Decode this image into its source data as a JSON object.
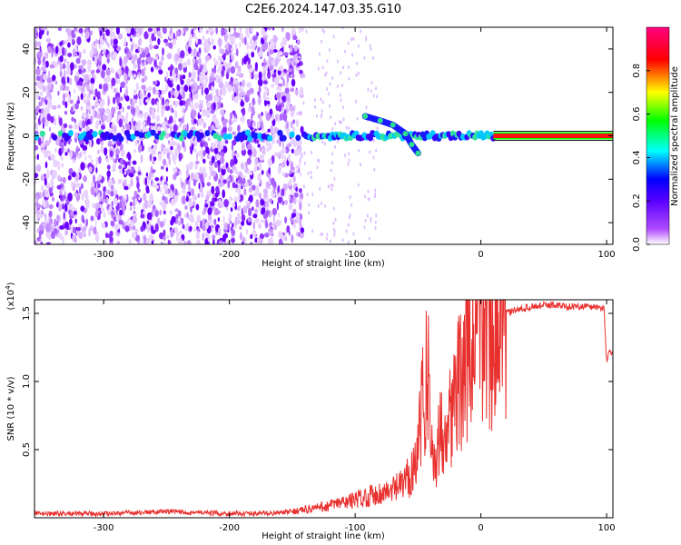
{
  "title": "C2E6.2024.147.03.35.G10",
  "chart_data": [
    {
      "type": "heatmap",
      "xlabel": "Height of straight line (km)",
      "ylabel": "Frequency (Hz)",
      "xlim": [
        -355,
        105
      ],
      "ylim": [
        -50,
        50
      ],
      "x_ticks": [
        -300,
        -200,
        -100,
        0,
        100
      ],
      "y_ticks": [
        -40,
        -20,
        0,
        20,
        40
      ],
      "colorbar": {
        "label": "Normalized spectral amplitude",
        "range": [
          0,
          1
        ],
        "ticks": [
          "0.0",
          "0.2",
          "0.4",
          "0.6",
          "0.8"
        ],
        "colormap": [
          "#ffffff",
          "#b14cff",
          "#5a00ff",
          "#0000ff",
          "#00ffff",
          "#00ff00",
          "#ffff00",
          "#ff0000",
          "#ff0080"
        ]
      },
      "features": {
        "noise_region_x": [
          -355,
          -142
        ],
        "main_line_frequency": 0,
        "strong_line_x": [
          10,
          105
        ],
        "branch": [
          {
            "x": -92,
            "y": 9
          },
          {
            "x": -80,
            "y": 7
          },
          {
            "x": -70,
            "y": 5
          },
          {
            "x": -60,
            "y": 1
          },
          {
            "x": -55,
            "y": -4
          },
          {
            "x": -50,
            "y": -8
          }
        ]
      }
    },
    {
      "type": "line",
      "xlabel": "Height of straight line (km)",
      "ylabel": "SNR (10 * v/v)",
      "y_multiplier": "(x10",
      "y_multiplier_exp": "4",
      "y_multiplier_close": ")",
      "xlim": [
        -355,
        105
      ],
      "ylim": [
        0,
        16000
      ],
      "x_ticks": [
        -300,
        -200,
        -100,
        0,
        100
      ],
      "y_ticks": [
        0.5,
        1.0,
        1.5
      ],
      "y_tick_labels": [
        "0.5",
        "1.0",
        "1.5"
      ],
      "color": "#e8302e",
      "series": [
        {
          "x": [
            -355,
            -300,
            -250,
            -200,
            -160,
            -140,
            -125,
            -110,
            -100,
            -90,
            -80,
            -70,
            -60,
            -55,
            -50,
            -45,
            -42,
            -40,
            -38,
            -35,
            -30,
            -25,
            -20,
            -15,
            -10,
            -5,
            0,
            5,
            10,
            15,
            20,
            30,
            40,
            50,
            60,
            70,
            80,
            90,
            95,
            98,
            100,
            102,
            105
          ],
          "values": [
            300,
            300,
            450,
            300,
            350,
            600,
            800,
            1100,
            1300,
            1600,
            1800,
            2000,
            2600,
            3500,
            5500,
            9000,
            12000,
            6000,
            4000,
            5000,
            7000,
            7500,
            9000,
            10500,
            12000,
            13000,
            13500,
            14000,
            13800,
            14500,
            15000,
            15300,
            15500,
            15600,
            15600,
            15500,
            15500,
            15500,
            15400,
            15300,
            11500,
            12200,
            12200
          ]
        }
      ]
    }
  ]
}
